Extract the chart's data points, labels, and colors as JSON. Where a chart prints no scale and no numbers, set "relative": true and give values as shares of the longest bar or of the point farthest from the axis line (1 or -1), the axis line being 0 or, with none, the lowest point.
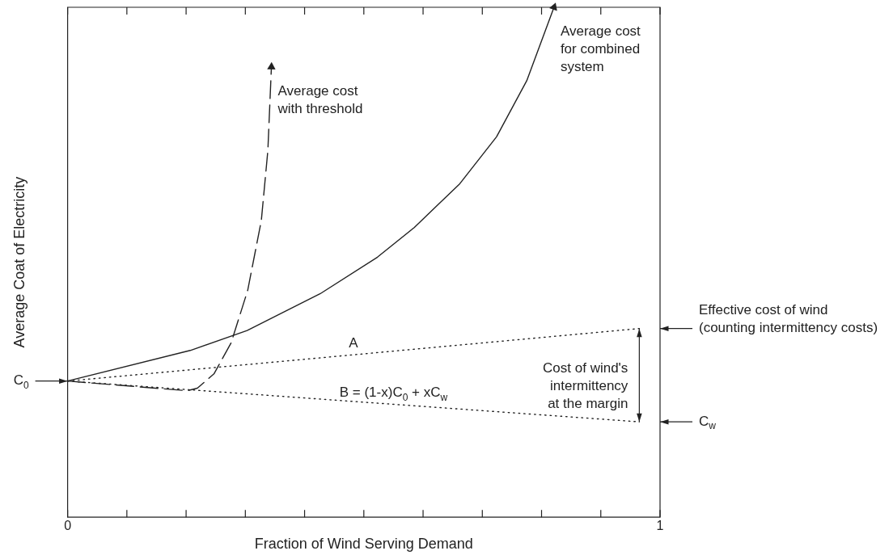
{
  "chart_data": {
    "type": "line",
    "relative": true,
    "xlabel": "Fraction of Wind Serving Demand",
    "ylabel": "Average Coat of Electricity",
    "xlim": [
      0,
      1
    ],
    "xticks": [
      0,
      {
        "value": 0.1,
        "label": null
      },
      {
        "value": 0.2,
        "label": null
      },
      {
        "value": 0.3,
        "label": null
      },
      {
        "value": 0.4,
        "label": null
      },
      {
        "value": 0.5,
        "label": null
      },
      {
        "value": 0.6,
        "label": null
      },
      {
        "value": 0.7,
        "label": null
      },
      {
        "value": 0.8,
        "label": null
      },
      {
        "value": 0.9,
        "label": null
      },
      1
    ],
    "grid": false,
    "legend": false,
    "marker": "none",
    "series": [
      {
        "color": "#222222",
        "line_style": "solid",
        "x": [
          0,
          0.207,
          0.303,
          0.426,
          0.523,
          0.585,
          0.662,
          0.724,
          0.775,
          0.821
        ],
        "values": [
          0.267,
          0.327,
          0.366,
          0.438,
          0.51,
          0.568,
          0.654,
          0.746,
          0.856,
          1
        ]
      },
      {
        "color": "#222222",
        "line_style": "dashed",
        "x": [
          0,
          0.202,
          0.219,
          0.247,
          0.276,
          0.304,
          0.327,
          0.338,
          0.344
        ],
        "values": [
          0.267,
          0.248,
          0.253,
          0.281,
          0.342,
          0.445,
          0.582,
          0.719,
          0.883
        ]
      },
      {
        "color": "#222222",
        "line_style": "dotted",
        "x": [
          0,
          0.965
        ],
        "values": [
          0.267,
          0.37
        ]
      },
      {
        "color": "#222222",
        "line_style": "dotted",
        "x": [
          0,
          0.965
        ],
        "values": [
          0.267,
          0.187
        ]
      }
    ],
    "annotations": [
      {
        "text": "Average cost\nwith threshold",
        "x": 0.344,
        "y": 0.883
      },
      {
        "text": "Average cost\nfor combined\nsystem",
        "x": 0.821,
        "y": 1
      },
      "A",
      "B = (1-x)C$_{0}$ + xC$_{w}$",
      {
        "text": "C$_{0}$",
        "x": 0,
        "y": 0.267
      },
      "C$_{w}$",
      "Effective cost of wind\n(counting intermittency costs)",
      "Cost of wind's\nintermittency\nat the margin"
    ]
  }
}
